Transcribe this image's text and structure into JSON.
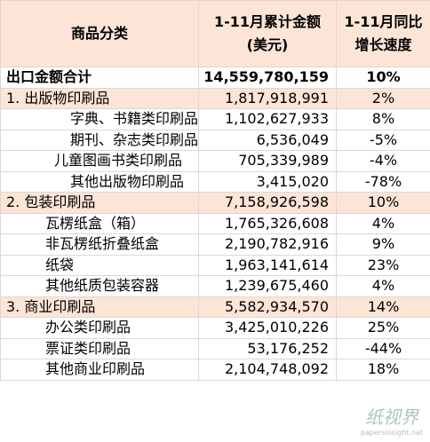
{
  "header": {
    "category": "商品分类",
    "amount": [
      "1-11月累计金额",
      "(美元)"
    ],
    "growth": [
      "1-11月同比",
      "增长速度"
    ]
  },
  "rows": [
    [
      "出口金额合计",
      "14,559,780,159",
      "10%"
    ],
    [
      "1. 出版物印刷品",
      "1,817,918,991",
      "2%"
    ],
    [
      "字典、书籍类印刷品",
      "1,102,627,933",
      "8%"
    ],
    [
      "期刊、杂志类印刷品",
      "6,536,049",
      "-5%"
    ],
    [
      "儿童图画书类印刷品",
      "705,339,989",
      "-4%"
    ],
    [
      "其他出版物印刷品",
      "3,415,020",
      "-78%"
    ],
    [
      "2. 包装印刷品",
      "7,158,926,598",
      "10%"
    ],
    [
      "瓦楞纸盒（箱）",
      "1,765,326,608",
      "4%"
    ],
    [
      "非瓦楞纸折叠纸盒",
      "2,190,782,916",
      "9%"
    ],
    [
      "纸袋",
      "1,963,141,614",
      "23%"
    ],
    [
      "其他纸质包装容器",
      "1,239,675,460",
      "4%"
    ],
    [
      "3. 商业印刷品",
      "5,582,934,570",
      "14%"
    ],
    [
      "办公类印刷品",
      "3,425,010,226",
      "25%"
    ],
    [
      "票证类印刷品",
      "53,176,252",
      "-44%"
    ],
    [
      "其他商业印刷品",
      "2,104,748,092",
      "18%"
    ]
  ],
  "watermark": {
    "name": "纸视界",
    "url": "papersinsight.net"
  }
}
